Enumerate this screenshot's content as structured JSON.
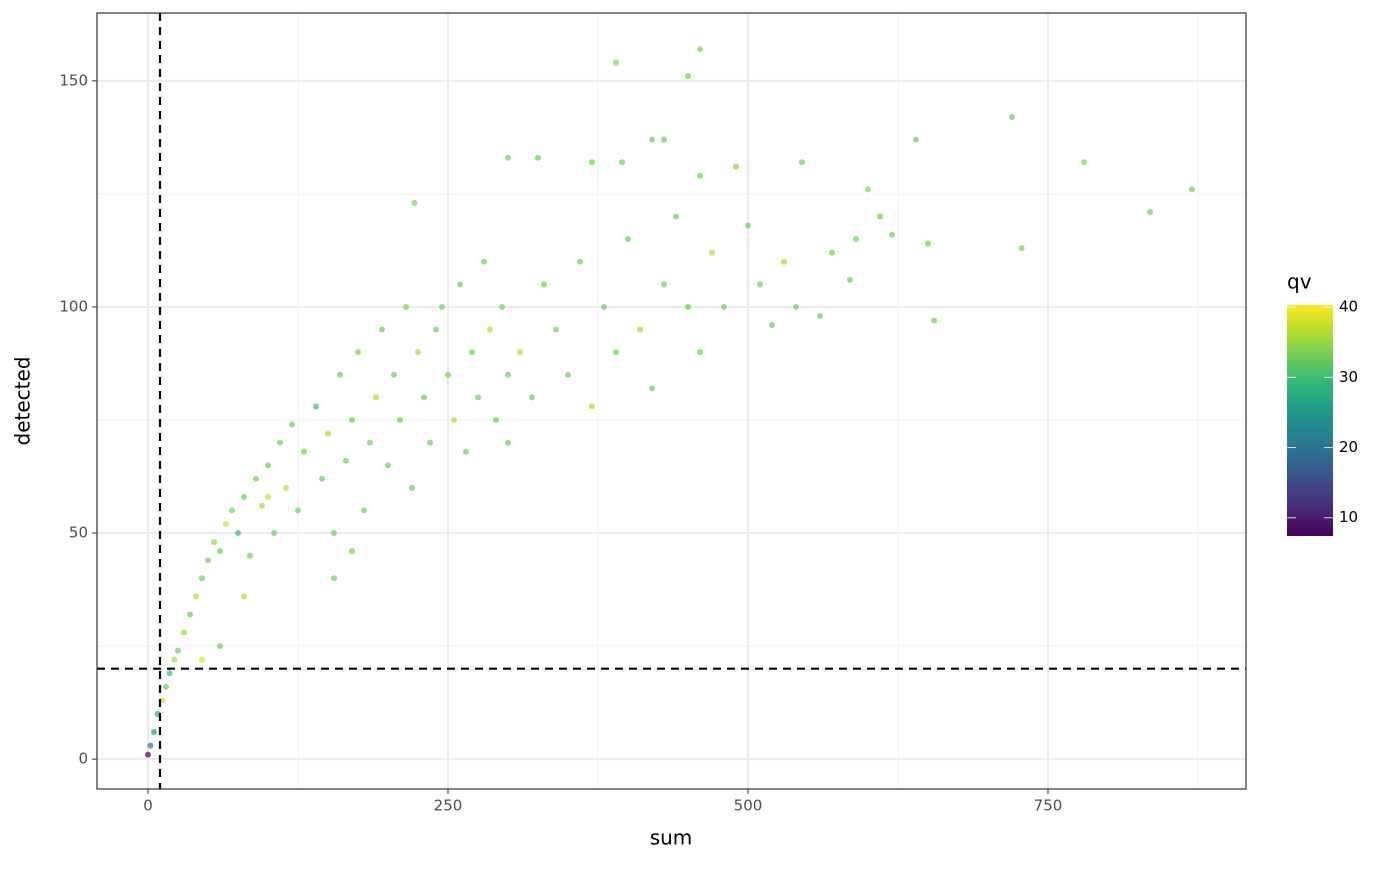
{
  "chart_data": {
    "type": "scatter",
    "xlabel": "sum",
    "ylabel": "detected",
    "xlim": [
      -42.5,
      915
    ],
    "ylim": [
      -6.6,
      165
    ],
    "xticks": [
      0,
      250,
      500,
      750
    ],
    "yticks": [
      0,
      50,
      100,
      150
    ],
    "xminorticks": [
      125,
      375,
      625,
      875
    ],
    "yminorticks": [
      25,
      75,
      125
    ],
    "grid": true,
    "vlines": [
      10
    ],
    "hlines": [
      20
    ],
    "color_scale": {
      "title": "qv",
      "colormap": "viridis",
      "clim": [
        7.4,
        40.3
      ],
      "ticks": [
        10,
        20,
        30,
        40
      ]
    },
    "series": [
      {
        "x": [
          390,
          460,
          450,
          720,
          780,
          870,
          835,
          728,
          640,
          420,
          430,
          600,
          655,
          650,
          620,
          585,
          545,
          490,
          460,
          222,
          300,
          325,
          395,
          370,
          0,
          2,
          5,
          8,
          12,
          15,
          18,
          22,
          25,
          30,
          35,
          40,
          45,
          50,
          55,
          60,
          65,
          70,
          75,
          80,
          85,
          90,
          95,
          100,
          105,
          110,
          115,
          120,
          125,
          130,
          140,
          145,
          150,
          155,
          160,
          165,
          170,
          175,
          180,
          185,
          190,
          195,
          200,
          205,
          210,
          215,
          220,
          225,
          230,
          235,
          240,
          245,
          250,
          255,
          260,
          265,
          270,
          275,
          280,
          285,
          290,
          295,
          300,
          310,
          320,
          330,
          340,
          350,
          360,
          370,
          380,
          390,
          400,
          410,
          420,
          430,
          440,
          450,
          460,
          470,
          480,
          500,
          510,
          520,
          530,
          540,
          560,
          570,
          590,
          610,
          300,
          170,
          155,
          80,
          60,
          45,
          100
        ],
        "y": [
          154,
          157,
          151,
          142,
          132,
          126,
          121,
          113,
          137,
          137,
          137,
          126,
          97,
          114,
          116,
          106,
          132,
          131,
          129,
          123,
          133,
          133,
          132,
          132,
          1,
          3,
          6,
          10,
          13,
          16,
          19,
          22,
          24,
          28,
          32,
          36,
          40,
          44,
          48,
          46,
          52,
          55,
          50,
          58,
          45,
          62,
          56,
          65,
          50,
          70,
          60,
          74,
          55,
          68,
          78,
          62,
          72,
          50,
          85,
          66,
          75,
          90,
          55,
          70,
          80,
          95,
          65,
          85,
          75,
          100,
          60,
          90,
          80,
          70,
          95,
          100,
          85,
          75,
          105,
          68,
          90,
          80,
          110,
          95,
          75,
          100,
          85,
          90,
          80,
          105,
          95,
          85,
          110,
          78,
          100,
          90,
          115,
          95,
          82,
          105,
          120,
          100,
          90,
          112,
          100,
          118,
          105,
          96,
          110,
          100,
          98,
          112,
          115,
          120,
          70,
          46,
          40,
          36,
          25,
          22,
          58
        ],
        "qv": [
          34,
          34,
          33,
          33,
          34,
          33,
          33,
          34,
          33,
          33,
          33,
          34,
          33,
          33,
          33,
          33,
          33,
          34,
          33,
          34,
          33,
          33,
          33,
          33,
          8,
          20,
          25,
          28,
          38,
          33,
          30,
          36,
          33,
          35,
          33,
          37,
          33,
          33,
          35,
          33,
          38,
          33,
          30,
          33,
          33,
          33,
          36,
          33,
          33,
          33,
          37,
          33,
          33,
          33,
          30,
          33,
          36,
          33,
          33,
          33,
          33,
          34,
          33,
          33,
          36,
          33,
          33,
          33,
          33,
          34,
          33,
          36,
          33,
          33,
          33,
          33,
          33,
          36,
          33,
          33,
          33,
          33,
          33,
          36,
          33,
          33,
          33,
          36,
          33,
          33,
          33,
          33,
          33,
          36,
          33,
          33,
          33,
          36,
          33,
          33,
          33,
          33,
          33,
          36,
          33,
          33,
          33,
          33,
          36,
          33,
          33,
          33,
          33,
          33,
          33,
          33,
          33,
          36,
          33,
          38,
          38
        ]
      }
    ]
  }
}
